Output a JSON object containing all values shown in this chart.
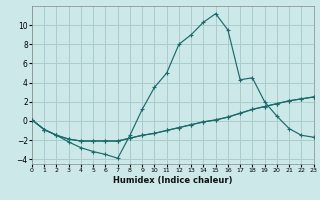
{
  "xlabel": "Humidex (Indice chaleur)",
  "bg_color": "#cce8e8",
  "grid_color": "#aacccc",
  "line_color": "#1a6b6b",
  "xlim": [
    0,
    23
  ],
  "ylim": [
    -4.5,
    12
  ],
  "xticks": [
    0,
    1,
    2,
    3,
    4,
    5,
    6,
    7,
    8,
    9,
    10,
    11,
    12,
    13,
    14,
    15,
    16,
    17,
    18,
    19,
    20,
    21,
    22,
    23
  ],
  "yticks": [
    -4,
    -2,
    0,
    2,
    4,
    6,
    8,
    10
  ],
  "line1_x": [
    0,
    1,
    2,
    3,
    4,
    5,
    6,
    7,
    8,
    9,
    10,
    11,
    12,
    13,
    14,
    15,
    16,
    17,
    18,
    19,
    20,
    21,
    22,
    23
  ],
  "line1_y": [
    0.1,
    -0.9,
    -1.5,
    -2.2,
    -2.8,
    -3.2,
    -3.5,
    -3.9,
    -1.5,
    1.2,
    3.5,
    5.0,
    8.0,
    9.0,
    10.3,
    11.2,
    9.5,
    4.3,
    4.5,
    2.0,
    0.5,
    -0.8,
    -1.5,
    -1.7
  ],
  "line2_x": [
    0,
    1,
    2,
    3,
    4,
    5,
    6,
    7,
    8,
    9,
    10,
    11,
    12,
    13,
    14,
    15,
    16,
    17,
    18,
    19,
    20,
    21,
    22,
    23
  ],
  "line2_y": [
    0.1,
    -0.9,
    -1.5,
    -1.9,
    -2.1,
    -2.1,
    -2.1,
    -2.1,
    -1.8,
    -1.5,
    -1.3,
    -1.0,
    -0.7,
    -0.4,
    -0.1,
    0.1,
    0.4,
    0.8,
    1.2,
    1.5,
    1.8,
    2.1,
    2.3,
    2.5
  ],
  "line3_x": [
    0,
    1,
    2,
    3,
    4,
    5,
    6,
    7,
    8,
    9,
    10,
    11,
    12,
    13,
    14,
    15,
    16,
    17,
    18,
    19,
    20,
    21,
    22,
    23
  ],
  "line3_y": [
    0.1,
    -0.9,
    -1.5,
    -1.9,
    -2.1,
    -2.1,
    -2.1,
    -2.1,
    -1.8,
    -1.5,
    -1.3,
    -1.0,
    -0.7,
    -0.4,
    -0.1,
    0.1,
    0.4,
    0.8,
    1.2,
    1.5,
    1.8,
    2.1,
    2.3,
    2.5
  ]
}
